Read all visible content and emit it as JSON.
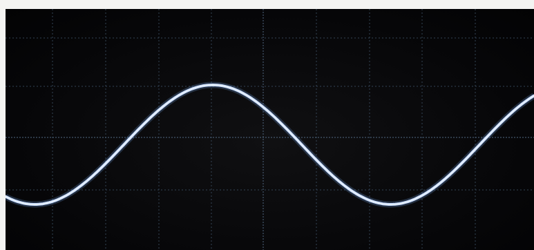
{
  "scene": {
    "subject": "oscilloscope-sine-wave",
    "colors": {
      "screen": "#060608",
      "grid": "#3c4f63",
      "trace": "#c8dcff",
      "trace_glow": "#6f9fe0",
      "frame": "#f4f4f2"
    }
  }
}
